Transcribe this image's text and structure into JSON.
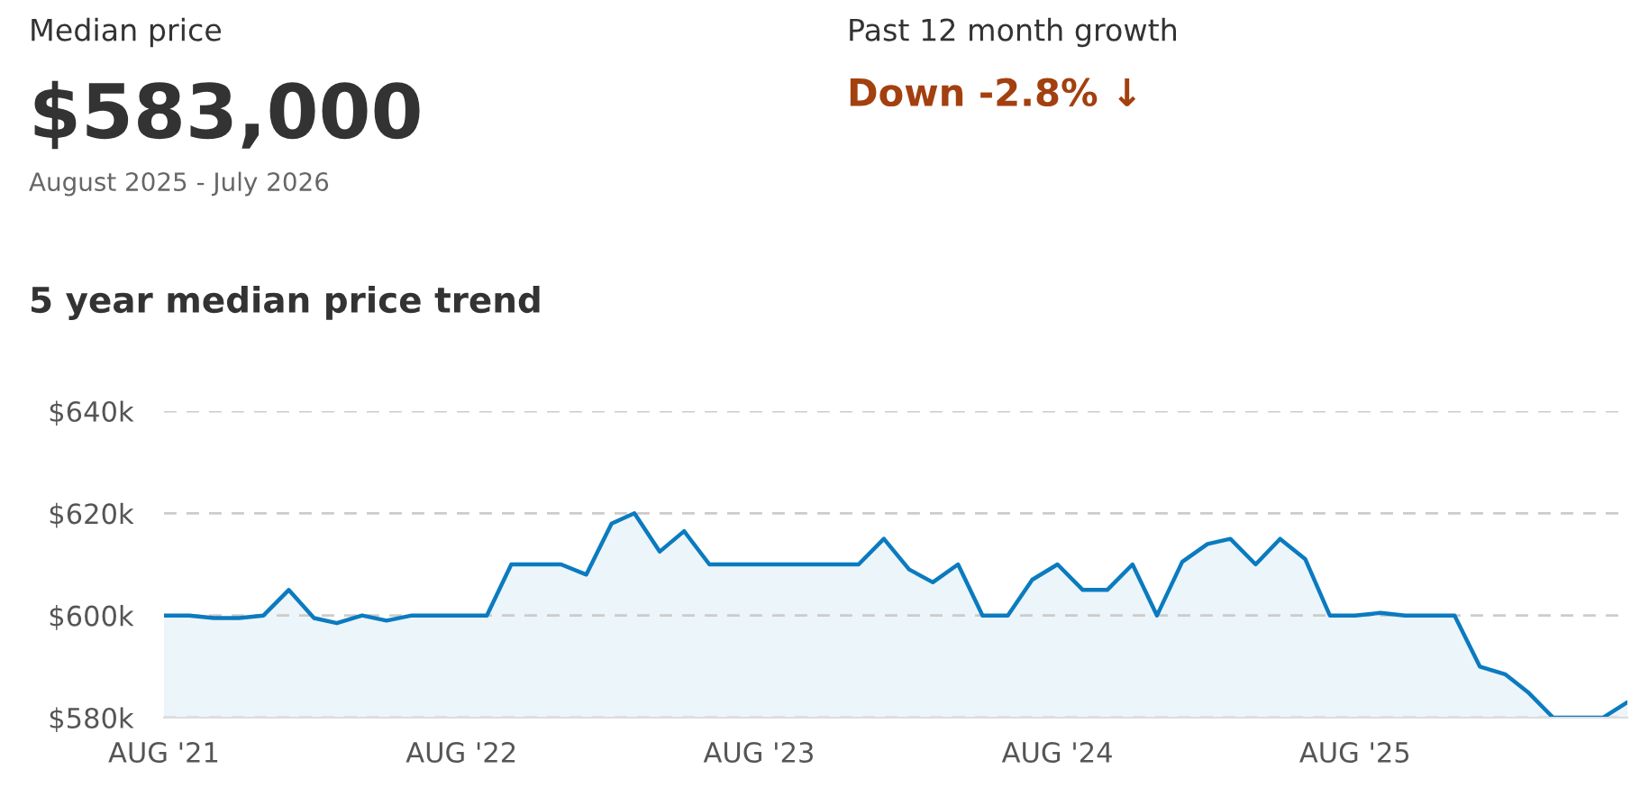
{
  "chart_data": {
    "type": "area",
    "title": "5 year median price trend",
    "annotations": [
      "Median price",
      "$583,000",
      "August 2025 - July 2026",
      "Past 12 month growth",
      "Down -2.8% ↓"
    ],
    "x": [
      "2021-08",
      "2021-09",
      "2021-10",
      "2021-11",
      "2021-12",
      "2022-01",
      "2022-02",
      "2022-03",
      "2022-04",
      "2022-05",
      "2022-06",
      "2022-07",
      "2022-08",
      "2022-09",
      "2022-10",
      "2022-11",
      "2022-12",
      "2023-01",
      "2023-02",
      "2023-03",
      "2023-04",
      "2023-05",
      "2023-06",
      "2023-07",
      "2023-08",
      "2023-09",
      "2023-10",
      "2023-11",
      "2023-12",
      "2024-01",
      "2024-02",
      "2024-03",
      "2024-04",
      "2024-05",
      "2024-06",
      "2024-07",
      "2024-08",
      "2024-09",
      "2024-10",
      "2024-11",
      "2024-12",
      "2025-01",
      "2025-02",
      "2025-03",
      "2025-04",
      "2025-05",
      "2025-06",
      "2025-07",
      "2025-08",
      "2025-09",
      "2025-10",
      "2025-11",
      "2025-12",
      "2026-01",
      "2026-02",
      "2026-03",
      "2026-04",
      "2026-05",
      "2026-06",
      "2026-07"
    ],
    "series": [
      {
        "color": "#0b7bbf",
        "values": [
          600,
          600,
          599.5,
          599.5,
          600,
          605,
          599.5,
          598.5,
          600,
          599,
          600,
          600,
          600,
          600,
          610,
          610,
          610,
          608,
          618,
          620,
          612.5,
          616.5,
          610,
          610,
          610,
          610,
          610,
          610,
          610,
          615,
          609,
          606.5,
          610,
          600,
          600,
          607,
          610,
          605,
          605,
          610,
          600,
          610.5,
          614,
          615,
          610,
          615,
          611,
          600,
          600,
          600.5,
          600,
          600,
          600,
          590,
          588.5,
          585,
          580,
          580,
          580,
          583
        ]
      }
    ],
    "xlim": [
      "2021-08",
      "2026-07"
    ],
    "xticks": [
      {
        "value": "2021-08",
        "label": "AUG '21"
      },
      {
        "value": "2022-08",
        "label": "AUG '22"
      },
      {
        "value": "2023-08",
        "label": "AUG '23"
      },
      {
        "value": "2024-08",
        "label": "AUG '24"
      },
      {
        "value": "2025-08",
        "label": "AUG '25"
      }
    ],
    "ylim": [
      580,
      640
    ],
    "yticks": [
      {
        "value": 580,
        "label": "$580k"
      },
      {
        "value": 600,
        "label": "$600k"
      },
      {
        "value": 620,
        "label": "$620k"
      },
      {
        "value": 640,
        "label": "$640k"
      }
    ],
    "grid": "y",
    "marker": "none",
    "line_style": "solid",
    "legend": false
  }
}
